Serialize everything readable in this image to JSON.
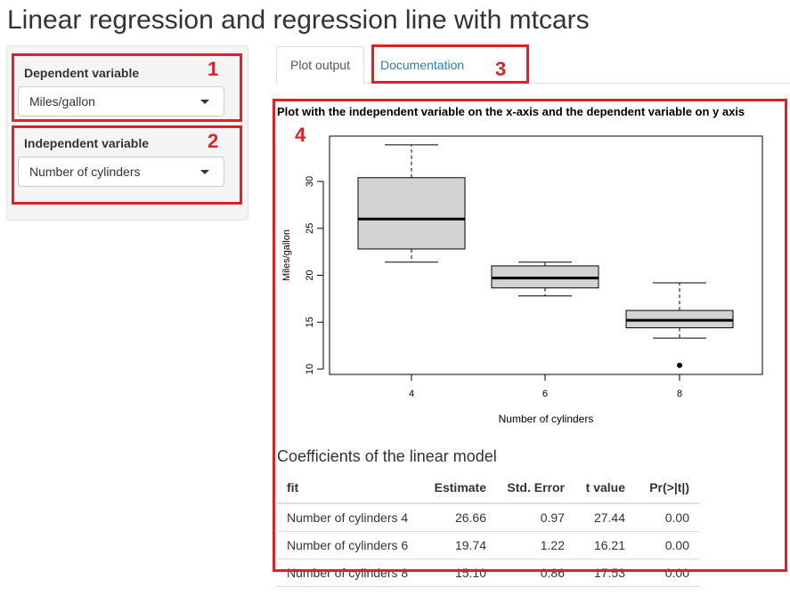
{
  "page": {
    "title": "Linear regression and regression line with mtcars"
  },
  "sidebar": {
    "dependent": {
      "label": "Dependent variable",
      "value": "Miles/gallon"
    },
    "independent": {
      "label": "Independent variable",
      "value": "Number of cylinders"
    }
  },
  "tabs": [
    {
      "label": "Plot output",
      "active": true
    },
    {
      "label": "Documentation",
      "active": false
    }
  ],
  "annotations": {
    "n1": "1",
    "n2": "2",
    "n3": "3",
    "n4": "4"
  },
  "plot": {
    "title": "Plot with the independent variable on the x-axis and the dependent variable on y axis"
  },
  "chart_data": {
    "type": "boxplot",
    "xlabel": "Number of cylinders",
    "ylabel": "Miles/gallon",
    "categories": [
      "4",
      "6",
      "8"
    ],
    "yticks": [
      10,
      15,
      20,
      25,
      30
    ],
    "ylim": [
      10.0,
      34.9
    ],
    "boxes": [
      {
        "category": "4",
        "min": 21.4,
        "q1": 22.8,
        "median": 26.0,
        "q3": 30.4,
        "max": 33.9,
        "outliers": []
      },
      {
        "category": "6",
        "min": 17.8,
        "q1": 18.65,
        "median": 19.7,
        "q3": 21.0,
        "max": 21.4,
        "outliers": []
      },
      {
        "category": "8",
        "min": 13.3,
        "q1": 14.4,
        "median": 15.2,
        "q3": 16.25,
        "max": 19.2,
        "outliers": [
          10.4
        ]
      }
    ],
    "box_color": "#d3d3d3"
  },
  "coef": {
    "heading": "Coefficients of the linear model",
    "columns": [
      "fit",
      "Estimate",
      "Std. Error",
      "t value",
      "Pr(>|t|)"
    ],
    "rows": [
      [
        "Number of cylinders 4",
        "26.66",
        "0.97",
        "27.44",
        "0.00"
      ],
      [
        "Number of cylinders 6",
        "19.74",
        "1.22",
        "16.21",
        "0.00"
      ],
      [
        "Number of cylinders 8",
        "15.10",
        "0.86",
        "17.53",
        "0.00"
      ]
    ]
  },
  "colors": {
    "accent_red": "#e01f26",
    "link": "#337ab7"
  }
}
